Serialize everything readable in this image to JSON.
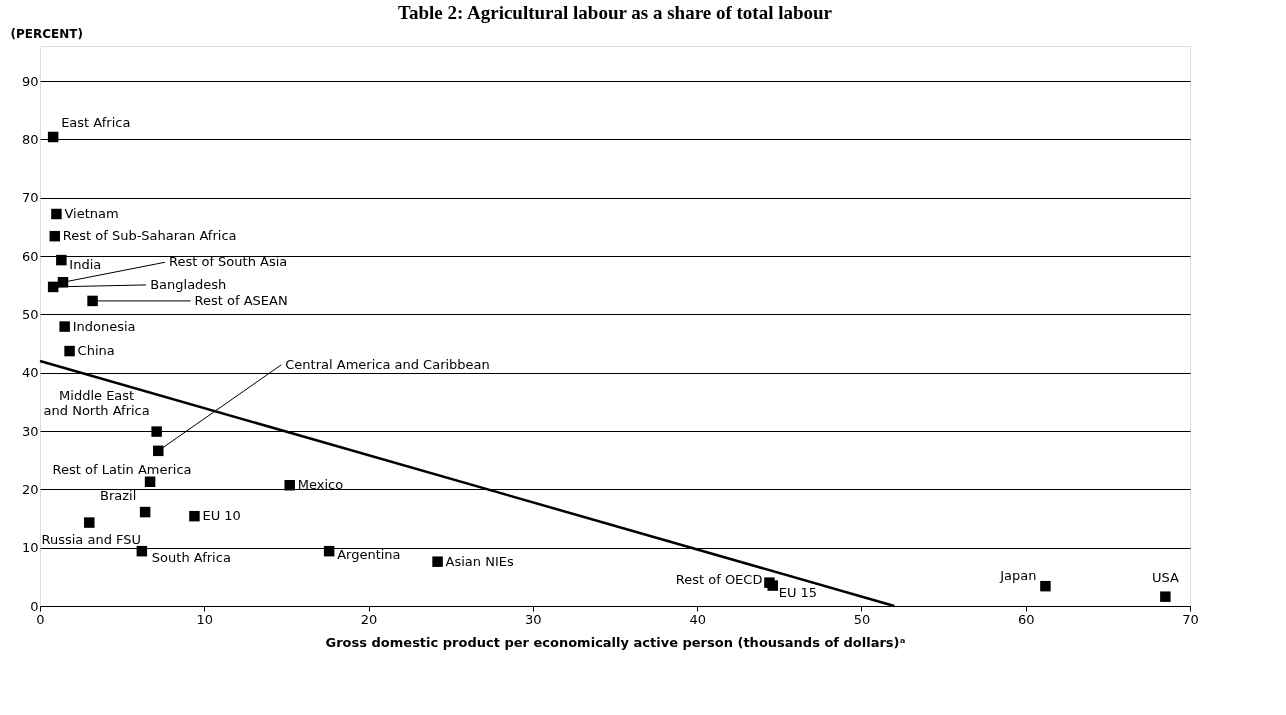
{
  "chart_data": {
    "type": "scatter",
    "title": "Table 2: Agricultural labour as a share of total labour",
    "xlabel": "Gross domestic product per economically active person (thousands of dollars)ᵃ",
    "ylabel": "(PERCENT)",
    "xlim": [
      0,
      70
    ],
    "xticks": [
      0,
      10,
      20,
      30,
      40,
      50,
      60,
      70
    ],
    "ylim": [
      0,
      96
    ],
    "yticks": [
      0,
      10,
      20,
      30,
      40,
      50,
      60,
      70,
      80,
      90
    ],
    "grid": "y",
    "legend": false,
    "series": [
      {
        "type": "scatter",
        "color": "#000000",
        "marker": "square",
        "x": [
          0.8,
          1.0,
          0.9,
          1.3,
          1.4,
          0.8,
          3.2,
          1.5,
          1.8,
          7.1,
          7.2,
          6.7,
          15.2,
          6.4,
          9.4,
          3.0,
          6.2,
          17.6,
          24.2,
          44.4,
          44.6,
          61.2,
          68.5
        ],
        "values": [
          80.4,
          67.2,
          63.4,
          59.3,
          55.5,
          54.7,
          52.3,
          47.9,
          43.7,
          29.9,
          26.6,
          21.3,
          20.7,
          16.1,
          15.4,
          14.3,
          9.4,
          9.4,
          7.6,
          4.0,
          3.5,
          3.4,
          1.6
        ],
        "value_labels": [
          "East Africa",
          "Vietnam",
          "Rest of Sub-Saharan Africa",
          "India",
          "Rest of South Asia",
          "Bangladesh",
          "Rest of ASEAN",
          "Indonesia",
          "China",
          "Middle East\nand North Africa",
          "Central America and Caribbean",
          "Rest of Latin America",
          "Mexico",
          "Brazil",
          "EU 10",
          "Russia and FSU",
          "South Africa",
          "Argentina",
          "Asian NIEs",
          "Rest of OECD",
          "EU 15",
          "Japan",
          "USA"
        ]
      },
      {
        "type": "line",
        "color": "#000000",
        "x": [
          0,
          52
        ],
        "values": [
          42,
          0
        ],
        "line_style": "solid",
        "marker": "none"
      }
    ]
  }
}
